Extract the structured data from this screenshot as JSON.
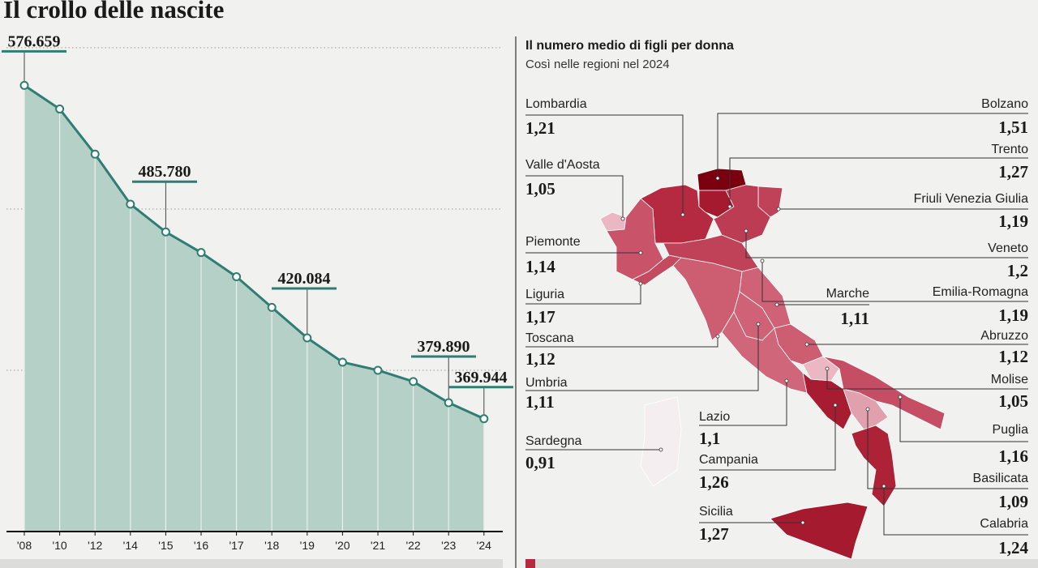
{
  "chart_data": [
    {
      "type": "area",
      "title": "Il crollo delle nascite",
      "categories": [
        "'08",
        "'10",
        "'12",
        "'14",
        "'15",
        "'16",
        "'17",
        "'18",
        "'19",
        "'20",
        "'21",
        "'22",
        "'23",
        "'24"
      ],
      "values": [
        576659,
        562000,
        534000,
        503000,
        485780,
        473000,
        458000,
        439000,
        420084,
        405000,
        400000,
        393000,
        379890,
        369944
      ],
      "value_labels": [
        "576.659",
        null,
        null,
        null,
        "485.780",
        null,
        null,
        null,
        "420.084",
        null,
        null,
        null,
        "379.890",
        "369.944"
      ],
      "color": "#2f7d73",
      "fill": "#b5d0c7",
      "ylim": [
        300000,
        608000
      ],
      "yticks": [
        400000,
        500000,
        600000
      ],
      "grid": true
    },
    {
      "type": "choropleth",
      "title": "Il numero medio di figli per donna",
      "subtitle": "Così nelle regioni nel 2024",
      "categories": [
        "Lombardia",
        "Valle d'Aosta",
        "Piemonte",
        "Liguria",
        "Toscana",
        "Umbria",
        "Sardegna",
        "Lazio",
        "Campania",
        "Sicilia",
        "Marche",
        "Bolzano",
        "Trento",
        "Friuli Venezia Giulia",
        "Veneto",
        "Emilia-Romagna",
        "Abruzzo",
        "Molise",
        "Puglia",
        "Basilicata",
        "Calabria"
      ],
      "values": [
        1.21,
        1.05,
        1.14,
        1.17,
        1.12,
        1.11,
        0.91,
        1.1,
        1.26,
        1.27,
        1.11,
        1.51,
        1.27,
        1.19,
        1.2,
        1.19,
        1.12,
        1.05,
        1.16,
        1.09,
        1.24
      ],
      "value_labels": [
        "1,21",
        "1,05",
        "1,14",
        "1,17",
        "1,12",
        "1,11",
        "0,91",
        "1,1",
        "1,26",
        "1,27",
        "1,11",
        "1,51",
        "1,27",
        "1,19",
        "1,2",
        "1,19",
        "1,12",
        "1,05",
        "1,16",
        "1,09",
        "1,24"
      ],
      "colors": [
        "#b52a40",
        "#eab7c2",
        "#c95368",
        "#c44a60",
        "#cd5e72",
        "#cf6276",
        "#f4eef0",
        "#d06679",
        "#a81c32",
        "#a61a30",
        "#cf6276",
        "#7a0010",
        "#a61a30",
        "#bf4259",
        "#bc3c53",
        "#bf4259",
        "#cd5e72",
        "#eab7c2",
        "#c64e64",
        "#e0a0ad",
        "#ad2236"
      ]
    }
  ]
}
